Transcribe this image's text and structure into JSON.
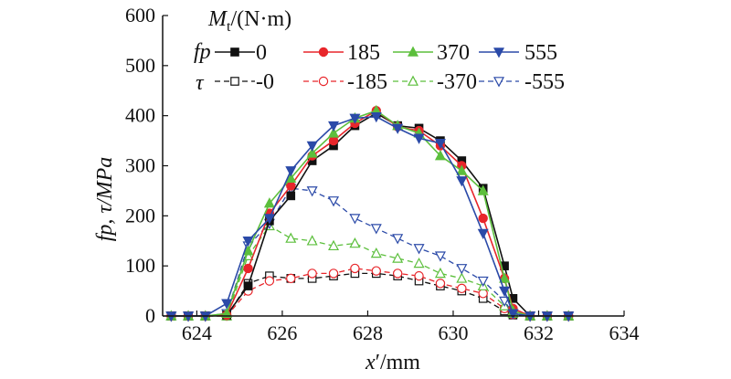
{
  "chart_data": {
    "type": "line",
    "ylabel": "fp, τ/MPa",
    "xlim": [
      623.2,
      634
    ],
    "ylim": [
      0,
      600
    ],
    "x_ticks": [
      624,
      626,
      628,
      630,
      632,
      634
    ],
    "y_ticks": [
      0,
      100,
      200,
      300,
      400,
      500,
      600
    ],
    "grid": false,
    "legend": {
      "placement": "top-right",
      "title_var": "M",
      "title_sub": "t",
      "title_units": "/(N·m)",
      "group_fp_var": "fp",
      "group_tau_var": "τ",
      "fp_labels": [
        "0",
        "185",
        "370",
        "555"
      ],
      "tau_labels": [
        "-0",
        "-185",
        "-370",
        "-555"
      ]
    },
    "colors": {
      "s0": "#111111",
      "s185": "#e8262b",
      "s370": "#5cbf3c",
      "s555": "#2b4aa8"
    },
    "series": [
      {
        "name": "fp 0",
        "group": "fp",
        "color": "#111111",
        "marker": "square",
        "filled": true,
        "dashed": false,
        "x": [
          623.4,
          623.8,
          624.2,
          624.7,
          625.2,
          625.7,
          626.2,
          626.7,
          627.2,
          627.7,
          628.2,
          628.7,
          629.2,
          629.7,
          630.2,
          630.7,
          631.2,
          631.4,
          631.8,
          632.2,
          632.7
        ],
        "y": [
          0,
          0,
          0,
          2,
          60,
          190,
          240,
          310,
          340,
          380,
          405,
          380,
          375,
          350,
          310,
          255,
          100,
          35,
          0,
          0,
          0
        ]
      },
      {
        "name": "fp 185",
        "group": "fp",
        "color": "#e8262b",
        "marker": "circle",
        "filled": true,
        "dashed": false,
        "x": [
          623.4,
          623.8,
          624.2,
          624.7,
          625.2,
          625.7,
          626.2,
          626.7,
          627.2,
          627.7,
          628.2,
          628.7,
          629.2,
          629.7,
          630.2,
          630.7,
          631.2,
          631.4,
          631.8,
          632.2,
          632.7
        ],
        "y": [
          0,
          0,
          0,
          2,
          95,
          205,
          260,
          320,
          350,
          385,
          410,
          378,
          370,
          340,
          300,
          195,
          75,
          15,
          0,
          0,
          0
        ]
      },
      {
        "name": "fp 370",
        "group": "fp",
        "color": "#5cbf3c",
        "marker": "triangle",
        "filled": true,
        "dashed": false,
        "x": [
          623.4,
          623.8,
          624.2,
          624.7,
          625.2,
          625.7,
          626.2,
          626.7,
          627.2,
          627.7,
          628.2,
          628.7,
          629.2,
          629.7,
          630.2,
          630.7,
          631.2,
          631.4,
          631.8,
          632.2,
          632.7
        ],
        "y": [
          0,
          0,
          0,
          5,
          130,
          225,
          275,
          325,
          365,
          395,
          410,
          380,
          365,
          320,
          290,
          250,
          75,
          10,
          0,
          0,
          0
        ]
      },
      {
        "name": "fp 555",
        "group": "fp",
        "color": "#2b4aa8",
        "marker": "tridown",
        "filled": true,
        "dashed": false,
        "x": [
          623.4,
          623.8,
          624.2,
          624.7,
          625.2,
          625.7,
          626.2,
          626.7,
          627.2,
          627.7,
          628.2,
          628.7,
          629.2,
          629.7,
          630.2,
          630.7,
          631.2,
          631.4,
          631.8,
          632.2,
          632.7
        ],
        "y": [
          0,
          0,
          0,
          25,
          150,
          195,
          290,
          340,
          380,
          395,
          398,
          375,
          355,
          345,
          270,
          165,
          50,
          5,
          0,
          0,
          0
        ]
      },
      {
        "name": "τ -0",
        "group": "tau",
        "color": "#111111",
        "marker": "square",
        "filled": false,
        "dashed": true,
        "x": [
          623.4,
          623.8,
          624.2,
          624.7,
          625.2,
          625.7,
          626.2,
          626.7,
          627.2,
          627.7,
          628.2,
          628.7,
          629.2,
          629.7,
          630.2,
          630.7,
          631.2,
          631.4,
          631.8,
          632.2,
          632.7
        ],
        "y": [
          0,
          0,
          0,
          0,
          65,
          80,
          75,
          75,
          80,
          85,
          85,
          80,
          70,
          60,
          50,
          35,
          10,
          2,
          0,
          0,
          0
        ]
      },
      {
        "name": "τ -185",
        "group": "tau",
        "color": "#e8262b",
        "marker": "circle",
        "filled": false,
        "dashed": true,
        "x": [
          623.4,
          623.8,
          624.2,
          624.7,
          625.2,
          625.7,
          626.2,
          626.7,
          627.2,
          627.7,
          628.2,
          628.7,
          629.2,
          629.7,
          630.2,
          630.7,
          631.2,
          631.4,
          631.8,
          632.2,
          632.7
        ],
        "y": [
          0,
          0,
          0,
          0,
          50,
          70,
          75,
          85,
          85,
          95,
          90,
          85,
          80,
          65,
          55,
          45,
          15,
          3,
          0,
          0,
          0
        ]
      },
      {
        "name": "τ -370",
        "group": "tau",
        "color": "#5cbf3c",
        "marker": "triangle",
        "filled": false,
        "dashed": true,
        "x": [
          623.4,
          623.8,
          624.2,
          624.7,
          625.2,
          625.7,
          626.2,
          626.7,
          627.2,
          627.7,
          628.2,
          628.7,
          629.2,
          629.7,
          630.2,
          630.7,
          631.2,
          631.4,
          631.8,
          632.2,
          632.7
        ],
        "y": [
          0,
          0,
          0,
          0,
          120,
          180,
          155,
          150,
          140,
          145,
          125,
          115,
          105,
          85,
          75,
          60,
          20,
          5,
          0,
          0,
          0
        ]
      },
      {
        "name": "τ -555",
        "group": "tau",
        "color": "#2b4aa8",
        "marker": "tridown",
        "filled": false,
        "dashed": true,
        "x": [
          623.4,
          623.8,
          624.2,
          624.7,
          625.2,
          625.7,
          626.2,
          626.7,
          627.2,
          627.7,
          628.2,
          628.7,
          629.2,
          629.7,
          630.2,
          630.7,
          631.2,
          631.4,
          631.8,
          632.2,
          632.7
        ],
        "y": [
          0,
          0,
          0,
          5,
          140,
          185,
          255,
          250,
          230,
          195,
          175,
          155,
          135,
          120,
          95,
          70,
          30,
          5,
          0,
          0,
          0
        ]
      }
    ]
  }
}
